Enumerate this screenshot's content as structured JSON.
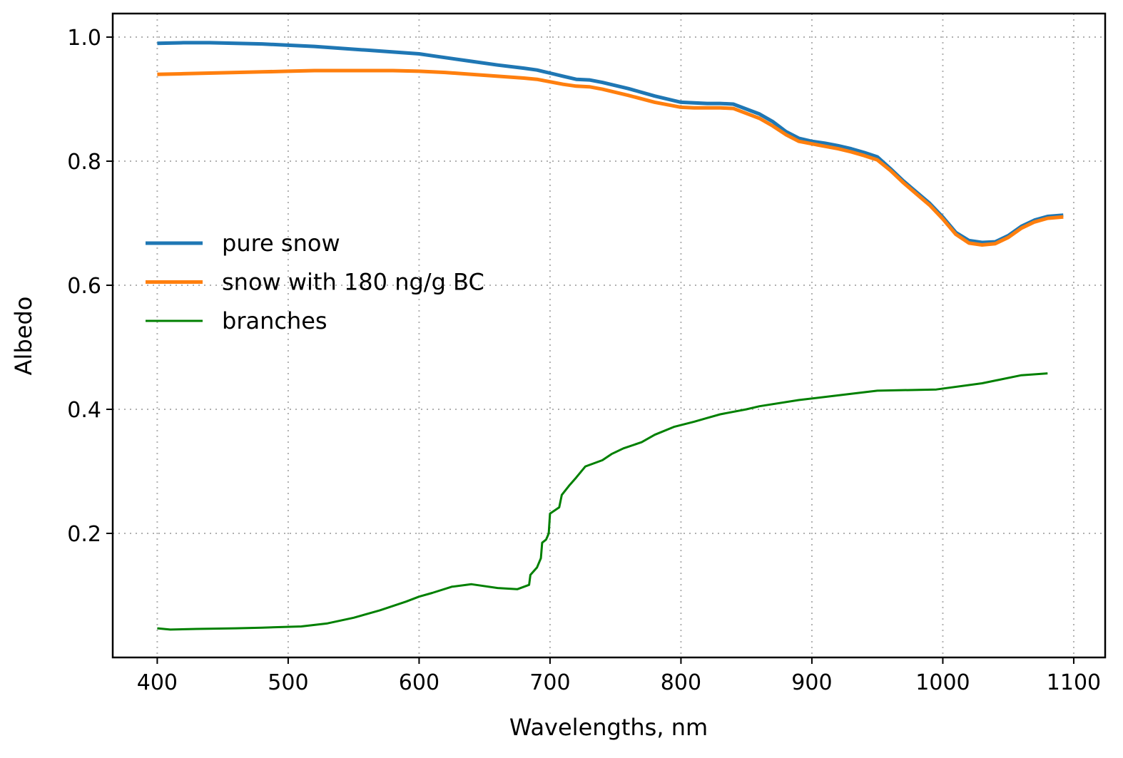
{
  "chart_data": {
    "type": "line",
    "title": "",
    "xlabel": "Wavelengths, nm",
    "ylabel": "Albedo",
    "xlim": [
      366,
      1124
    ],
    "ylim": [
      0.0,
      1.038
    ],
    "xticks": [
      400,
      500,
      600,
      700,
      800,
      900,
      1000,
      1100
    ],
    "yticks": [
      0.2,
      0.4,
      0.6,
      0.8,
      1.0
    ],
    "ytick_labels": [
      "0.2",
      "0.4",
      "0.6",
      "0.8",
      "1.0"
    ],
    "grid": true,
    "legend_position": "center-left",
    "series": [
      {
        "name": "pure snow",
        "color": "#1f77b4",
        "width": "thick",
        "x": [
          400,
          420,
          440,
          460,
          480,
          500,
          520,
          540,
          560,
          580,
          600,
          610,
          620,
          640,
          660,
          680,
          690,
          700,
          710,
          720,
          730,
          740,
          760,
          780,
          800,
          810,
          820,
          830,
          840,
          850,
          860,
          870,
          880,
          890,
          900,
          910,
          920,
          930,
          940,
          950,
          960,
          970,
          980,
          990,
          1000,
          1010,
          1020,
          1030,
          1040,
          1050,
          1060,
          1070,
          1080,
          1092
        ],
        "y": [
          0.99,
          0.991,
          0.991,
          0.99,
          0.989,
          0.987,
          0.985,
          0.982,
          0.979,
          0.976,
          0.973,
          0.97,
          0.967,
          0.961,
          0.955,
          0.95,
          0.947,
          0.942,
          0.937,
          0.932,
          0.931,
          0.927,
          0.917,
          0.905,
          0.895,
          0.894,
          0.893,
          0.893,
          0.892,
          0.884,
          0.876,
          0.864,
          0.848,
          0.837,
          0.832,
          0.829,
          0.825,
          0.82,
          0.814,
          0.807,
          0.788,
          0.768,
          0.75,
          0.732,
          0.71,
          0.685,
          0.672,
          0.669,
          0.67,
          0.68,
          0.695,
          0.705,
          0.711,
          0.713
        ]
      },
      {
        "name": "snow with 180 ng/g BC",
        "color": "#ff7f0e",
        "width": "thick",
        "x": [
          400,
          420,
          440,
          460,
          480,
          500,
          520,
          540,
          560,
          580,
          600,
          610,
          620,
          640,
          660,
          680,
          690,
          700,
          710,
          720,
          730,
          740,
          760,
          780,
          800,
          810,
          820,
          830,
          840,
          850,
          860,
          870,
          880,
          890,
          900,
          910,
          920,
          930,
          940,
          950,
          960,
          970,
          980,
          990,
          1000,
          1010,
          1020,
          1030,
          1040,
          1050,
          1060,
          1070,
          1080,
          1092
        ],
        "y": [
          0.94,
          0.941,
          0.942,
          0.943,
          0.944,
          0.945,
          0.946,
          0.946,
          0.946,
          0.946,
          0.945,
          0.944,
          0.943,
          0.94,
          0.937,
          0.934,
          0.932,
          0.928,
          0.924,
          0.921,
          0.92,
          0.916,
          0.906,
          0.895,
          0.887,
          0.886,
          0.886,
          0.886,
          0.885,
          0.877,
          0.869,
          0.857,
          0.843,
          0.832,
          0.828,
          0.824,
          0.82,
          0.815,
          0.809,
          0.802,
          0.785,
          0.765,
          0.747,
          0.729,
          0.707,
          0.682,
          0.668,
          0.665,
          0.667,
          0.677,
          0.692,
          0.702,
          0.708,
          0.71
        ]
      },
      {
        "name": "branches",
        "color": "#008000",
        "width": "thin",
        "x": [
          400,
          410,
          430,
          460,
          480,
          510,
          530,
          550,
          570,
          590,
          600,
          610,
          625,
          640,
          660,
          675,
          684,
          685,
          690,
          693,
          694,
          697,
          698,
          699,
          700,
          707,
          709,
          715,
          720,
          727,
          740,
          747,
          756,
          770,
          780,
          795,
          810,
          820,
          830,
          850,
          860,
          890,
          930,
          950,
          995,
          1030,
          1060,
          1080
        ],
        "y": [
          0.047,
          0.045,
          0.046,
          0.047,
          0.048,
          0.05,
          0.055,
          0.064,
          0.076,
          0.09,
          0.098,
          0.104,
          0.114,
          0.118,
          0.112,
          0.11,
          0.117,
          0.133,
          0.145,
          0.16,
          0.185,
          0.19,
          0.195,
          0.2,
          0.232,
          0.242,
          0.262,
          0.278,
          0.29,
          0.308,
          0.318,
          0.328,
          0.337,
          0.347,
          0.359,
          0.372,
          0.38,
          0.386,
          0.392,
          0.4,
          0.405,
          0.415,
          0.425,
          0.43,
          0.432,
          0.442,
          0.455,
          0.458
        ]
      }
    ]
  }
}
